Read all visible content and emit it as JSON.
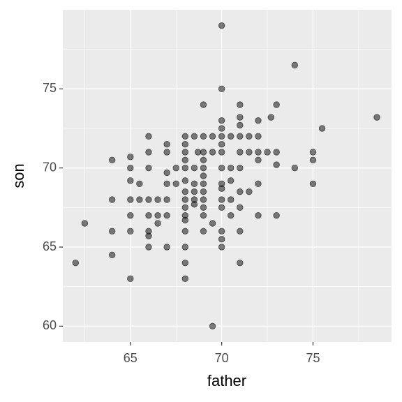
{
  "chart_data": {
    "type": "scatter",
    "x_label": "father",
    "y_label": "son",
    "x": [
      62,
      62.5,
      64,
      64,
      64,
      64,
      65,
      65,
      65,
      65,
      65,
      65,
      65,
      65.5,
      65.5,
      66,
      66,
      66,
      66,
      66,
      66,
      66,
      66,
      66.5,
      66.5,
      66.5,
      67,
      67,
      67,
      67,
      67,
      67,
      67,
      67.5,
      67.5,
      68,
      68,
      68,
      68,
      68,
      68,
      68,
      68,
      68,
      68,
      68,
      68,
      68,
      68,
      68,
      68.5,
      68.5,
      68.5,
      68.5,
      68.5,
      68.5,
      68.7,
      69,
      69,
      69,
      69,
      69,
      69,
      69,
      69,
      69,
      69,
      69,
      69,
      69.5,
      69.5,
      69.5,
      69.5,
      70,
      70,
      70,
      70,
      70,
      70,
      70,
      70,
      70,
      70,
      70,
      70,
      70,
      70,
      70,
      70.5,
      70.5,
      70.5,
      70.5,
      70.5,
      71,
      71,
      71,
      71,
      71,
      71,
      71,
      71,
      71,
      71,
      71.5,
      71.5,
      71.5,
      72,
      72,
      72,
      72,
      72,
      72,
      72.5,
      72.7,
      73,
      73,
      73,
      73,
      74,
      74,
      75,
      75,
      75,
      75.5,
      78.5
    ],
    "values": [
      64,
      66.5,
      70.5,
      68,
      66,
      64.5,
      63,
      70.7,
      70,
      69.2,
      68,
      67,
      66,
      69,
      68,
      72,
      71,
      70,
      68,
      67,
      66,
      65.7,
      65,
      68,
      67,
      66.5,
      71.5,
      71,
      69.7,
      69,
      68,
      67,
      65,
      70,
      69,
      72,
      71.5,
      71,
      70.5,
      70,
      69.2,
      68.5,
      68,
      67.5,
      67,
      66.7,
      66,
      65,
      64,
      63,
      72,
      70,
      68.5,
      68,
      67.7,
      69,
      71,
      74,
      72,
      71,
      70.5,
      70,
      69.5,
      69,
      68.5,
      68,
      67.5,
      67,
      66,
      72,
      71,
      66.5,
      60,
      79,
      75,
      73,
      72.5,
      72,
      71.5,
      71,
      70,
      69,
      68.7,
      68,
      67.5,
      66,
      65.5,
      65,
      72,
      70,
      69.2,
      68,
      67,
      74,
      73.2,
      72.7,
      72,
      71,
      70,
      68.5,
      67.5,
      66,
      64,
      72,
      71,
      68.5,
      73,
      72,
      71,
      70.5,
      69,
      67,
      71,
      73.2,
      74,
      71,
      70.2,
      67,
      76.5,
      70,
      71,
      70.5,
      69,
      72.5,
      73.2
    ],
    "color": "#000000",
    "opacity": 0.5,
    "xlim": [
      61.3,
      79.3
    ],
    "ylim": [
      59.0,
      80.0
    ],
    "xticks": [
      65,
      70,
      75
    ],
    "yticks": [
      60,
      65,
      70,
      75
    ],
    "grid": true
  }
}
